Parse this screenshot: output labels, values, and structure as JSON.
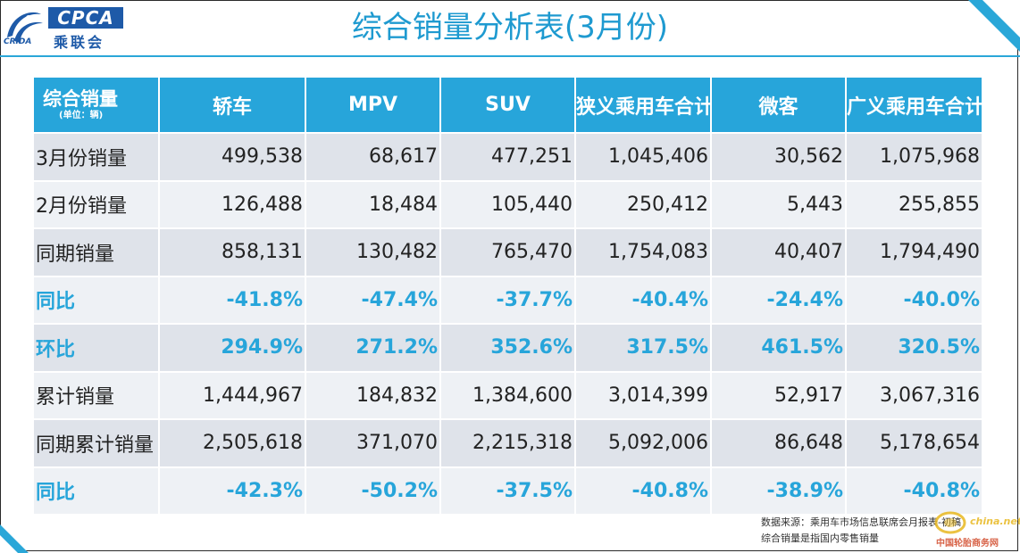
{
  "header": {
    "title": "综合销量分析表(3月份)",
    "logo_text": "CPCA",
    "logo_cn": "乘联会",
    "logo_sub": "CRIDA"
  },
  "colors": {
    "accent": "#27a5da",
    "row_odd": "#dfe3ea",
    "row_even": "#eef1f5",
    "brand_blue": "#1e5aa8"
  },
  "table": {
    "header_label": "综合销量",
    "header_unit": "(单位：辆)",
    "columns": [
      "轿车",
      "MPV",
      "SUV",
      "狭义乘用车合计",
      "微客",
      "广义乘用车合计"
    ],
    "rows": [
      {
        "label": "3月份销量",
        "values": [
          "499,538",
          "68,617",
          "477,251",
          "1,045,406",
          "30,562",
          "1,075,968"
        ],
        "pct": false
      },
      {
        "label": "2月份销量",
        "values": [
          "126,488",
          "18,484",
          "105,440",
          "250,412",
          "5,443",
          "255,855"
        ],
        "pct": false
      },
      {
        "label": "同期销量",
        "values": [
          "858,131",
          "130,482",
          "765,470",
          "1,754,083",
          "40,407",
          "1,794,490"
        ],
        "pct": false
      },
      {
        "label": "同比",
        "values": [
          "-41.8%",
          "-47.4%",
          "-37.7%",
          "-40.4%",
          "-24.4%",
          "-40.0%"
        ],
        "pct": true
      },
      {
        "label": "环比",
        "values": [
          "294.9%",
          "271.2%",
          "352.6%",
          "317.5%",
          "461.5%",
          "320.5%"
        ],
        "pct": true
      },
      {
        "label": "累计销量",
        "values": [
          "1,444,967",
          "184,832",
          "1,384,600",
          "3,014,399",
          "52,917",
          "3,067,316"
        ],
        "pct": false
      },
      {
        "label": "同期累计销量",
        "values": [
          "2,505,618",
          "371,070",
          "2,215,318",
          "5,092,006",
          "86,648",
          "5,178,654"
        ],
        "pct": false
      },
      {
        "label": "同比",
        "values": [
          "-42.3%",
          "-50.2%",
          "-37.5%",
          "-40.8%",
          "-38.9%",
          "-40.8%"
        ],
        "pct": true
      }
    ]
  },
  "footer": {
    "source": "数据来源：乘用车市场信息联席会月报表-初稿",
    "note": "综合销量是指国内零售销量"
  },
  "watermark": {
    "top": "china.net",
    "bottom": "中国轮胎商务网"
  }
}
